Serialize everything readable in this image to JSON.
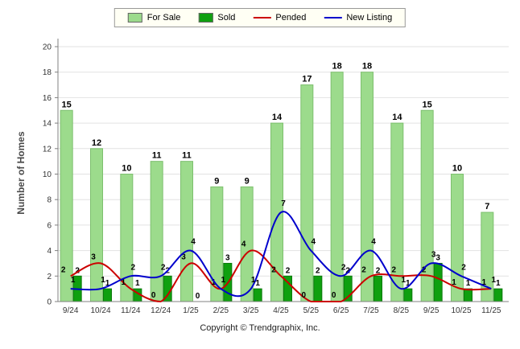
{
  "legend": {
    "items": [
      {
        "label": "For Sale",
        "type": "bar",
        "color": "#9CDB8C"
      },
      {
        "label": "Sold",
        "type": "bar",
        "color": "#0FA00F"
      },
      {
        "label": "Pended",
        "type": "line",
        "color": "#CC0000"
      },
      {
        "label": "New Listing",
        "type": "line",
        "color": "#0000CC"
      }
    ]
  },
  "chart_data": {
    "type": "bar",
    "title": "",
    "categories": [
      "9/24",
      "10/24",
      "11/24",
      "12/24",
      "1/25",
      "2/25",
      "3/25",
      "4/25",
      "5/25",
      "6/25",
      "7/25",
      "8/25",
      "9/25",
      "10/25",
      "11/25"
    ],
    "series": [
      {
        "name": "For Sale",
        "type": "bar",
        "color": "#9CDB8C",
        "border": "#7DBF6E",
        "values": [
          15,
          12,
          10,
          11,
          11,
          9,
          9,
          14,
          17,
          18,
          18,
          14,
          15,
          10,
          7
        ]
      },
      {
        "name": "Sold",
        "type": "bar",
        "color": "#0FA00F",
        "border": "#0B7A0B",
        "values": [
          2,
          1,
          1,
          2,
          0,
          3,
          1,
          2,
          2,
          2,
          2,
          1,
          3,
          1,
          1
        ]
      },
      {
        "name": "Pended",
        "type": "line",
        "color": "#CC0000",
        "values": [
          2,
          3,
          1,
          0,
          3,
          1,
          4,
          2,
          0,
          0,
          2,
          2,
          2,
          1,
          1
        ]
      },
      {
        "name": "New Listing",
        "type": "line",
        "color": "#0000CC",
        "values": [
          1,
          1,
          2,
          2,
          4,
          1,
          1,
          7,
          4,
          2,
          4,
          1,
          3,
          2,
          1
        ]
      }
    ],
    "xlabel": "",
    "ylabel": "Number of Homes",
    "ylim": [
      0,
      20
    ],
    "ytick_step": 2,
    "grid": true,
    "legend_position": "top"
  },
  "footer": {
    "copyright": "Copyright © Trendgraphix, Inc."
  }
}
